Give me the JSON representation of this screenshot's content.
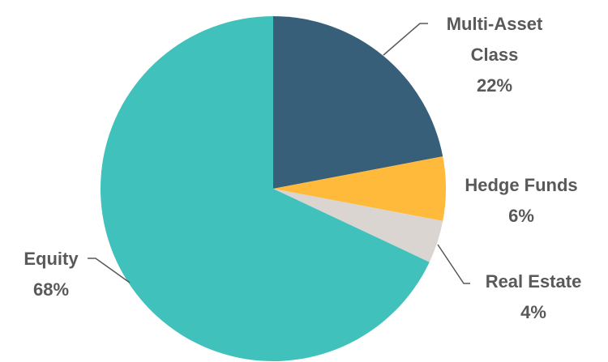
{
  "chart_data": {
    "type": "pie",
    "title": "",
    "start_angle_deg": 0,
    "direction": "clockwise",
    "slices": [
      {
        "name": "Multi-Asset Class",
        "label_lines": [
          "Multi-Asset",
          "Class"
        ],
        "value": 22,
        "value_label": "22%",
        "color": "#375F7A"
      },
      {
        "name": "Hedge Funds",
        "label_lines": [
          "Hedge Funds"
        ],
        "value": 6,
        "value_label": "6%",
        "color": "#FFBA3B"
      },
      {
        "name": "Real Estate",
        "label_lines": [
          "Real Estate"
        ],
        "value": 4,
        "value_label": "4%",
        "color": "#DAD5D0"
      },
      {
        "name": "Equity",
        "label_lines": [
          "Equity"
        ],
        "value": 68,
        "value_label": "68%",
        "color": "#40C1BC"
      }
    ]
  }
}
